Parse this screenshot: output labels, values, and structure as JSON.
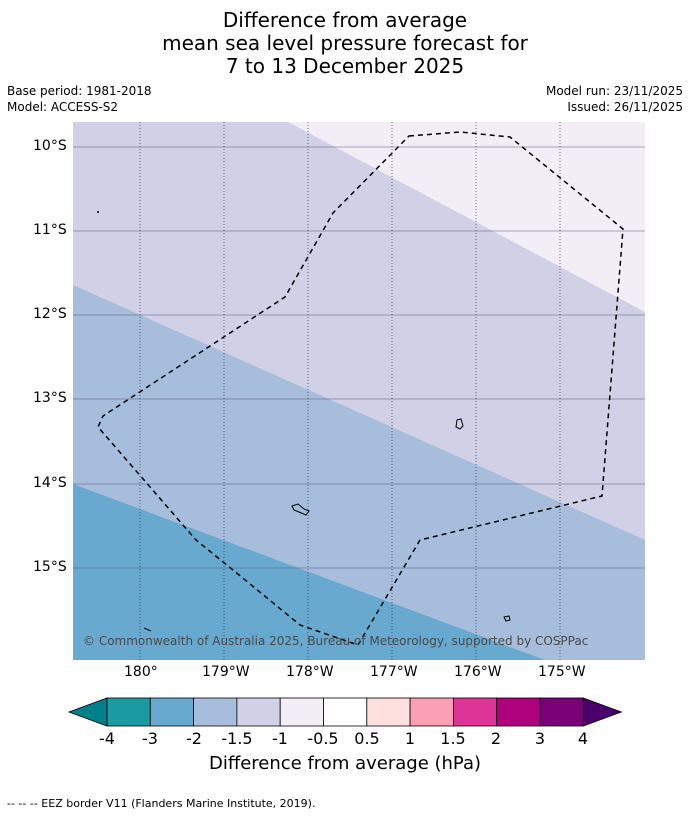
{
  "title": {
    "line1": "Difference from average",
    "line2": "mean sea level pressure forecast for",
    "line3": "7 to 13 December 2025"
  },
  "meta": {
    "base_period": "Base period: 1981-2018",
    "model": "Model: ACCESS-S2",
    "model_run": "Model run: 23/11/2025",
    "issued": "Issued: 26/11/2025"
  },
  "map": {
    "copyright": "© Commonwealth of Australia 2025, Bureau of Meteorology, supported by COSPPac",
    "lat_labels": [
      "10°S",
      "11°S",
      "12°S",
      "13°S",
      "14°S",
      "15°S"
    ],
    "lon_labels": [
      "180°",
      "179°W",
      "178°W",
      "177°W",
      "176°W",
      "175°W"
    ],
    "band_colors": {
      "minus_neg05": "#f3edf6",
      "minus_1": "#d0d1e6",
      "minus_15": "#a6bddb",
      "minus_2": "#67a9cf"
    }
  },
  "colorbar": {
    "ticks": [
      "-4",
      "-3",
      "-2",
      "-1.5",
      "-1",
      "-0.5",
      "0.5",
      "1",
      "1.5",
      "2",
      "3",
      "4"
    ],
    "colors": [
      "#02818a",
      "#1b9aa0",
      "#67a9cf",
      "#a6bddb",
      "#d0d1e6",
      "#f3edf6",
      "#ffffff",
      "#fde0dd",
      "#fa9fb5",
      "#dd3497",
      "#ae017e",
      "#7a0177",
      "#49006a"
    ],
    "title": "Difference from average (hPa)"
  },
  "footer": "--  --  -- EEZ border V11 (Flanders Marine Institute, 2019)."
}
